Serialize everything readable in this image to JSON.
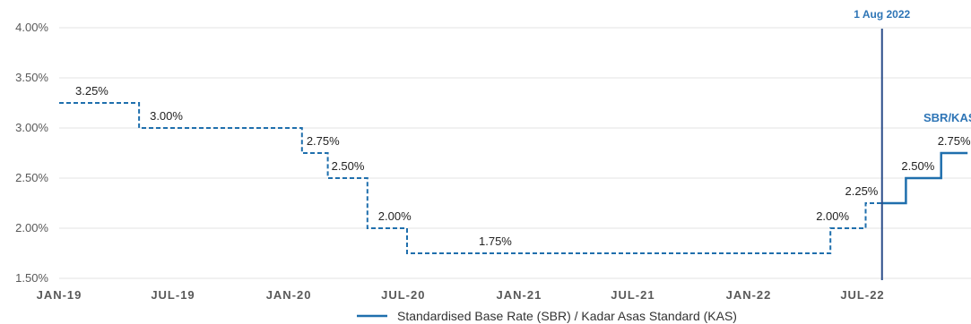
{
  "colors": {
    "series": "#1f6fad",
    "grid": "#e3e3e3",
    "axis_text": "#595959",
    "annotation": "#2e75b6"
  },
  "chart_data": {
    "type": "line",
    "step": true,
    "ylim": [
      1.5,
      4.0
    ],
    "y_ticks": [
      "1.50%",
      "2.00%",
      "2.50%",
      "3.00%",
      "3.50%",
      "4.00%"
    ],
    "x_ticks": [
      "JAN-19",
      "JUL-19",
      "JAN-20",
      "JUL-20",
      "JAN-21",
      "JUL-21",
      "JAN-22",
      "JUL-22"
    ],
    "grid": true,
    "series": [
      {
        "name": "Standardised Base Rate (SBR) / Kadar Asas Standard (KAS)",
        "segments": [
          {
            "style": "dashed",
            "points": [
              {
                "x": "2019-01-01",
                "y": 3.25
              },
              {
                "x": "2019-05-08",
                "y": 3.0
              },
              {
                "x": "2020-01-22",
                "y": 2.75
              },
              {
                "x": "2020-03-03",
                "y": 2.5
              },
              {
                "x": "2020-05-05",
                "y": 2.0
              },
              {
                "x": "2020-07-07",
                "y": 1.75
              },
              {
                "x": "2022-05-11",
                "y": 2.0
              },
              {
                "x": "2022-07-06",
                "y": 2.25
              },
              {
                "x": "2022-08-01",
                "y": 2.25
              }
            ]
          },
          {
            "style": "solid",
            "points": [
              {
                "x": "2022-08-01",
                "y": 2.25
              },
              {
                "x": "2022-09-08",
                "y": 2.5
              },
              {
                "x": "2022-11-03",
                "y": 2.75
              },
              {
                "x": "2022-12-15",
                "y": 2.75
              }
            ]
          }
        ]
      }
    ],
    "data_labels": [
      "3.25%",
      "3.00%",
      "2.75%",
      "2.50%",
      "2.00%",
      "1.75%",
      "2.00%",
      "2.25%",
      "2.50%",
      "2.75%"
    ],
    "annotations": {
      "vertical_line_label": "1 Aug 2022",
      "series_label": "SBR/KAS"
    },
    "legend": {
      "position": "bottom"
    }
  }
}
